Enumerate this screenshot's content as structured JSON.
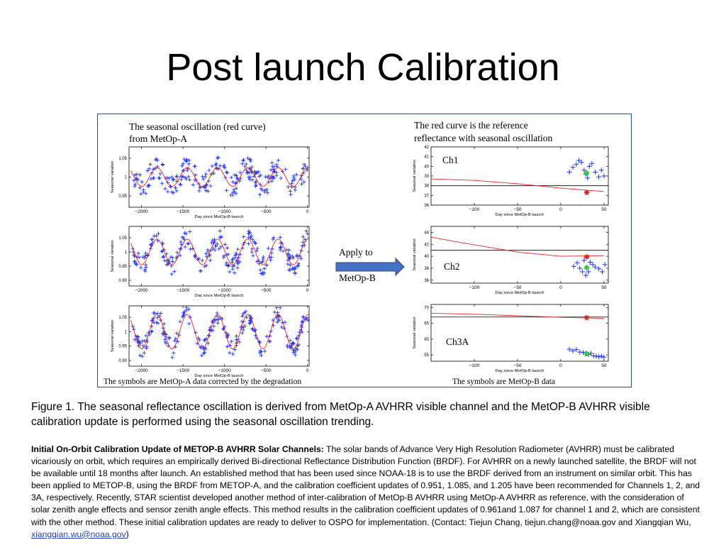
{
  "title": "Post launch Calibration",
  "figure": {
    "left_heading_line1": "The seasonal oscillation (red curve)",
    "left_heading_line2": "from MetOp-A",
    "right_heading_line1": "The red curve is the reference",
    "right_heading_line2": "reflectance with seasonal oscillation",
    "arrow_label_top": "Apply to",
    "arrow_label_bottom": "MetOp-B",
    "left_footer": "The symbols are MetOp-A data corrected by the degradation",
    "right_footer": "The symbols are MetOp-B data",
    "left_xlabel": "Day since MetOp-B launch",
    "right_xlabel": "Day since MetOp-B launch",
    "left_ylabel": "Seasonal variation",
    "right_ylabel": "Seasonal variation"
  },
  "chart_data": [
    {
      "type": "scatter",
      "panel": "left-1",
      "xlabel": "Day since MetOp-B launch",
      "ylabel": "Seasonal variation",
      "xticks": [
        -2000,
        -1500,
        -1000,
        -500,
        0
      ],
      "yticks": [
        0.95,
        1.0,
        1.05
      ],
      "xlim": [
        -2150,
        20
      ],
      "ylim": [
        0.92,
        1.08
      ],
      "amplitude": 0.025,
      "noise": 0.03
    },
    {
      "type": "scatter",
      "panel": "left-2",
      "xlabel": "Day since MetOp-B launch",
      "ylabel": "Seasonal variation",
      "xticks": [
        -2000,
        -1500,
        -1000,
        -500,
        0
      ],
      "yticks": [
        0.9,
        0.95,
        1.0,
        1.05
      ],
      "xlim": [
        -2150,
        20
      ],
      "ylim": [
        0.88,
        1.09
      ],
      "amplitude": 0.045,
      "noise": 0.035
    },
    {
      "type": "scatter",
      "panel": "left-3",
      "xlabel": "Day since MetOp-B launch",
      "ylabel": "Seasonal variation",
      "xticks": [
        -2000,
        -1500,
        -1000,
        -500,
        0
      ],
      "yticks": [
        0.9,
        0.95,
        1.0,
        1.05
      ],
      "xlim": [
        -2150,
        20
      ],
      "ylim": [
        0.88,
        1.09
      ],
      "amplitude": 0.06,
      "noise": 0.03
    },
    {
      "type": "scatter",
      "panel": "Ch1",
      "label": "Ch1",
      "xlabel": "Day since MetOp-B launch",
      "ylabel": "Seasonal variation",
      "xticks": [
        -100,
        -50,
        0,
        50
      ],
      "yticks": [
        36,
        37,
        38,
        39,
        40,
        41,
        42
      ],
      "xlim": [
        -150,
        55
      ],
      "ylim": [
        36,
        42
      ],
      "reference_line": 38.0,
      "red_curve": {
        "x": [
          -150,
          -100,
          -50,
          0,
          50
        ],
        "y": [
          38.7,
          38.55,
          38.2,
          37.75,
          37.4
        ]
      },
      "blue_points": {
        "x": [
          10,
          14,
          18,
          21,
          24,
          27,
          29,
          31,
          33,
          36,
          40,
          44,
          47,
          50
        ],
        "y": [
          39.4,
          39.9,
          40.2,
          40.6,
          40.4,
          39.6,
          39.2,
          38.8,
          40.0,
          40.3,
          39.4,
          38.9,
          39.6,
          39.0
        ]
      },
      "green_marker": {
        "x": 30,
        "y": 39.3
      },
      "red_marker": {
        "x": 30,
        "y": 37.3
      }
    },
    {
      "type": "scatter",
      "panel": "Ch2",
      "label": "Ch2",
      "xlabel": "Day since MetOp-B launch",
      "ylabel": "Seasonal variation",
      "xticks": [
        -100,
        -50,
        0,
        50
      ],
      "yticks": [
        36,
        38,
        40,
        42,
        44
      ],
      "xlim": [
        -150,
        55
      ],
      "ylim": [
        35.5,
        45
      ],
      "reference_line": 41.0,
      "red_curve": {
        "x": [
          -150,
          -100,
          -50,
          0,
          50
        ],
        "y": [
          43.2,
          41.9,
          40.7,
          40.0,
          40.1
        ]
      },
      "blue_points": {
        "x": [
          15,
          19,
          22,
          25,
          27,
          29,
          32,
          34,
          37,
          40,
          44,
          48,
          51
        ],
        "y": [
          38.3,
          38.9,
          38.0,
          37.4,
          39.3,
          36.8,
          37.4,
          39.0,
          38.6,
          38.2,
          37.9,
          37.4,
          38.6
        ]
      },
      "green_marker": {
        "x": 30,
        "y": 38.1
      },
      "red_marker": {
        "x": 30,
        "y": 39.9
      }
    },
    {
      "type": "scatter",
      "panel": "Ch3A",
      "label": "Ch3A",
      "xlabel": "Day since MetOp-B launch",
      "ylabel": "Seasonal variation",
      "xticks": [
        -100,
        -50,
        0,
        50
      ],
      "yticks": [
        55,
        60,
        65,
        70
      ],
      "xlim": [
        -150,
        55
      ],
      "ylim": [
        53,
        71
      ],
      "reference_line": 67.0,
      "red_curve": {
        "x": [
          -150,
          -100,
          -50,
          0,
          50
        ],
        "y": [
          68.2,
          67.9,
          67.4,
          66.9,
          66.6
        ]
      },
      "blue_points": {
        "x": [
          10,
          14,
          18,
          22,
          26,
          29,
          32,
          35,
          38,
          41,
          44,
          47,
          50
        ],
        "y": [
          56.8,
          56.3,
          56.7,
          55.9,
          55.8,
          55.4,
          55.1,
          55.5,
          54.7,
          54.6,
          54.4,
          54.6,
          54.3
        ]
      },
      "green_marker": {
        "x": 30,
        "y": 55.4
      },
      "red_marker": {
        "x": 30,
        "y": 66.8
      }
    }
  ],
  "colors": {
    "blue": "#2233ee",
    "red": "#ee2020",
    "green": "#22cc33",
    "frame": "#2f4a7a",
    "arrow": "#4472c4",
    "link": "#1f3fbf"
  },
  "caption": "Figure 1. The seasonal reflectance oscillation is derived from MetOp-A AVHRR visible channel and the MetOP-B AVHRR visible calibration update is performed using the seasonal oscillation trending.",
  "body": {
    "lead": "Initial On-Orbit Calibration Update of METOP-B AVHRR Solar Channels:",
    "text": " The solar bands of Advance Very High Resolution Radiometer (AVHRR) must be calibrated vicariously on orbit, which requires an empirically derived Bi-directional Reflectance Distribution Function (BRDF). For AVHRR on a newly launched satellite, the BRDF will not be available until 18 months after launch. An established method that has been used since NOAA-18 is to use the BRDF derived from an instrument on similar orbit. This has been applied to METOP-B, using the BRDF from METOP-A, and the calibration coefficient updates of 0.951, 1.085, and 1.205 have been recommended for Channels 1, 2, and 3A, respectively. Recently, STAR scientist developed another method of inter-calibration of MetOp-B AVHRR using MetOp-A AVHRR as reference, with the consideration of solar zenith angle effects and sensor zenith angle effects. This method results in the calibration coefficient updates of 0.961and 1.087 for channel 1 and 2, which are consistent with the other method. These initial calibration updates are ready to deliver to OSPO for implementation.  (Contact: Tiejun Chang, tiejun.chang@noaa.gov and Xiangqian Wu, ",
    "link": "xiangqian.wu@noaa.gov",
    "close": ")"
  }
}
